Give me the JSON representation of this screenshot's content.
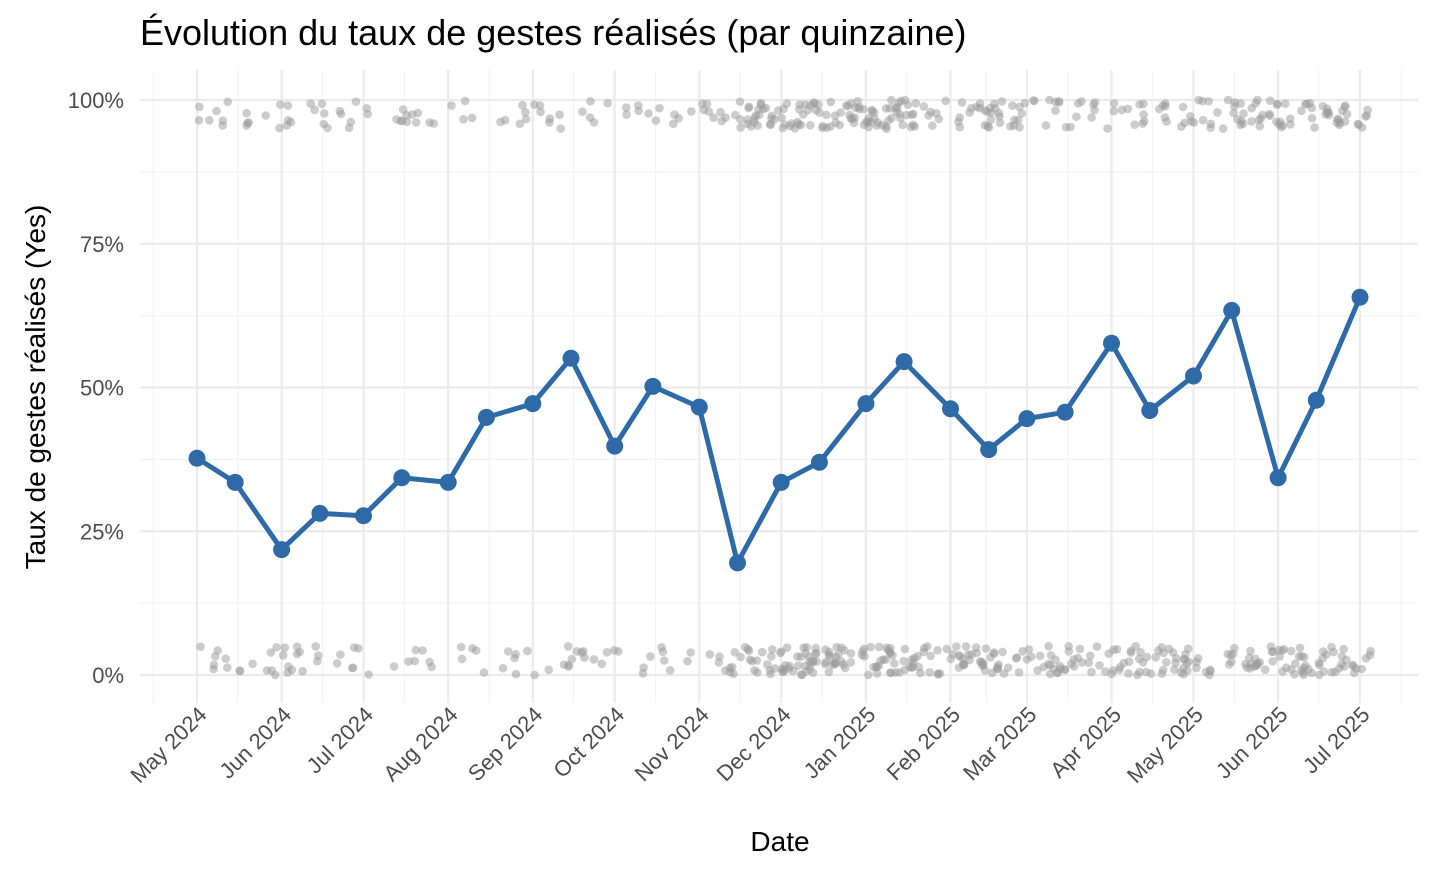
{
  "chart_data": {
    "type": "line",
    "title": "Évolution du taux de gestes réalisés (par quinzaine)",
    "xlabel": "Date",
    "ylabel": "Taux de gestes réalisés (Yes)",
    "x_ticks": [
      "May 2024",
      "Jun 2024",
      "Jul 2024",
      "Aug 2024",
      "Sep 2024",
      "Oct 2024",
      "Nov 2024",
      "Dec 2024",
      "Jan 2025",
      "Feb 2025",
      "Mar 2025",
      "Apr 2025",
      "May 2025",
      "Jun 2025",
      "Jul 2025"
    ],
    "y_ticks": [
      "0%",
      "25%",
      "50%",
      "75%",
      "100%"
    ],
    "ylim": [
      0,
      1
    ],
    "grid": true,
    "series": [
      {
        "color": "#2e6aa8",
        "x": [
          "2024-05-01",
          "2024-05-15",
          "2024-06-01",
          "2024-06-15",
          "2024-07-01",
          "2024-07-15",
          "2024-08-01",
          "2024-08-15",
          "2024-09-01",
          "2024-09-15",
          "2024-10-01",
          "2024-10-15",
          "2024-11-01",
          "2024-11-15",
          "2024-12-01",
          "2024-12-15",
          "2025-01-01",
          "2025-01-15",
          "2025-02-01",
          "2025-02-15",
          "2025-03-01",
          "2025-03-15",
          "2025-04-01",
          "2025-04-15",
          "2025-05-01",
          "2025-05-15",
          "2025-06-01",
          "2025-06-15",
          "2025-07-01"
        ],
        "values": [
          0.377,
          0.335,
          0.218,
          0.281,
          0.277,
          0.343,
          0.335,
          0.448,
          0.472,
          0.551,
          0.398,
          0.502,
          0.466,
          0.195,
          0.335,
          0.37,
          0.472,
          0.545,
          0.463,
          0.392,
          0.446,
          0.457,
          0.577,
          0.46,
          0.52,
          0.634,
          0.343,
          0.478,
          0.657
        ]
      }
    ],
    "raw_points": {
      "description": "Individual binary outcomes (0 or 1) jittered, shown as semi-transparent grey points",
      "color": "#9a9a9a",
      "yes_value": 1,
      "no_value": 0,
      "x_range": [
        "2024-05-01",
        "2025-07-05"
      ]
    }
  }
}
